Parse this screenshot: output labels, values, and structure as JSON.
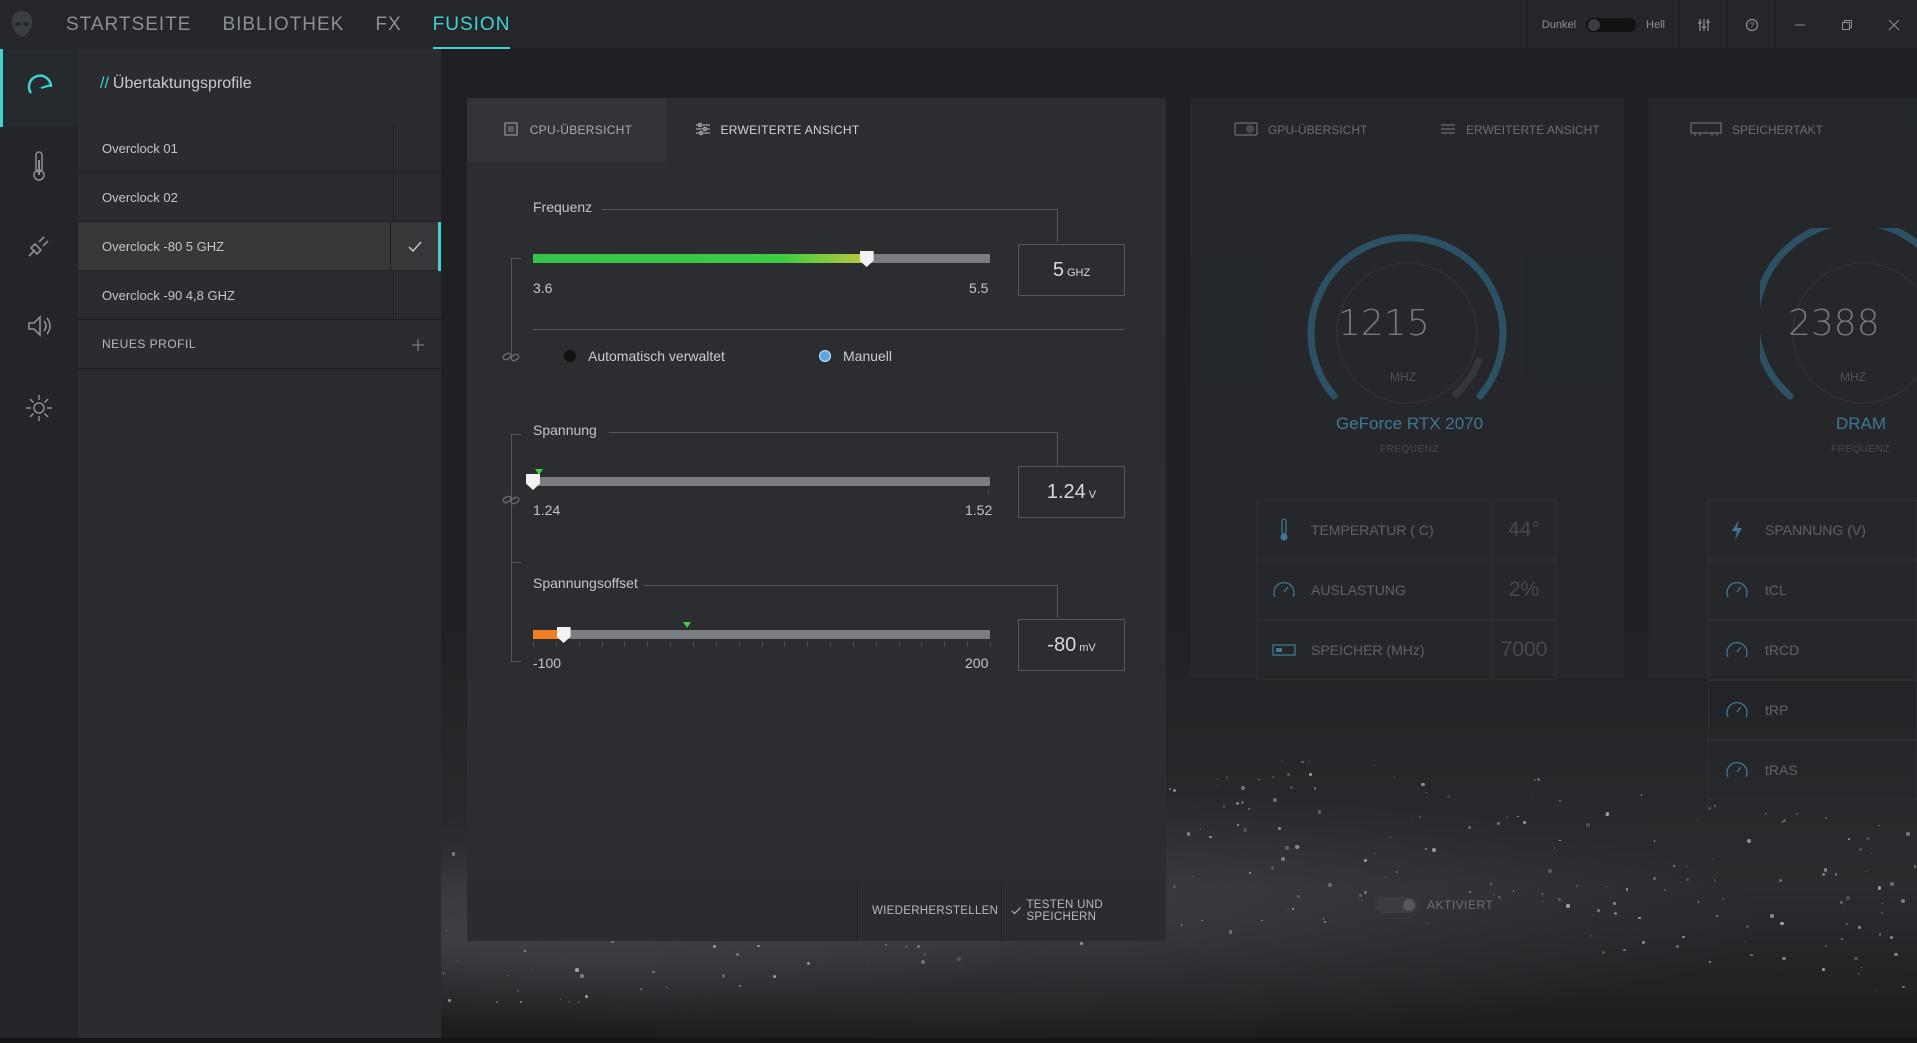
{
  "window": {
    "theme_dark": "Dunkel",
    "theme_light": "Hell"
  },
  "nav": {
    "items": [
      "STARTSEITE",
      "BIBLIOTHEK",
      "FX",
      "FUSION"
    ],
    "active": "FUSION"
  },
  "profiles": {
    "title_prefix": "//",
    "title": "Übertaktungsprofile",
    "items": [
      {
        "label": "Overclock 01"
      },
      {
        "label": "Overclock 02"
      },
      {
        "label": "Overclock -80 5 GHZ",
        "selected": true
      },
      {
        "label": "Overclock -90 4,8 GHZ"
      }
    ],
    "new_profile": "NEUES PROFIL"
  },
  "cpu": {
    "tab_overview": "CPU-ÜBERSICHT",
    "tab_advanced": "ERWEITERTE ANSICHT",
    "frequency": {
      "label": "Frequenz",
      "min": "3.6",
      "max": "5.5",
      "value": "5",
      "unit": "GHZ",
      "fraction": 0.73
    },
    "mode": {
      "auto": "Automatisch verwaltet",
      "manual": "Manuell",
      "selected": "Manuell"
    },
    "voltage": {
      "label": "Spannung",
      "min": "1.24",
      "max": "1.52",
      "value": "1.24",
      "unit": "V",
      "fraction": 0.0
    },
    "offset": {
      "label": "Spannungsoffset",
      "min": "-100",
      "max": "200",
      "value": "-80",
      "unit": "mV",
      "fraction": 0.067
    },
    "btn_restore": "WIEDERHERSTELLEN",
    "btn_test_save": "TESTEN UND SPEICHERN"
  },
  "gpu": {
    "tab_overview": "GPU-ÜBERSICHT",
    "tab_advanced": "ERWEITERTE ANSICHT",
    "gauge_value": "1215",
    "gauge_unit": "MHZ",
    "name": "GeForce RTX 2070",
    "sub": "FREQUENZ",
    "stats": [
      {
        "label": "TEMPERATUR ( C)",
        "value": "44°"
      },
      {
        "label": "AUSLASTUNG",
        "value": "2%"
      },
      {
        "label": "SPEICHER (MHz)",
        "value": "7000"
      }
    ],
    "activated": "AKTIVIERT"
  },
  "ram": {
    "tab": "SPEICHERTAKT",
    "gauge_value": "2388",
    "gauge_unit": "MHZ",
    "name": "DRAM",
    "sub": "FREQUENZ",
    "stats": [
      {
        "label": "SPANNUNG (V)"
      },
      {
        "label": "tCL"
      },
      {
        "label": "tRCD"
      },
      {
        "label": "tRP"
      },
      {
        "label": "tRAS"
      }
    ]
  },
  "colors": {
    "accent": "#3fd3d3",
    "gauge_blue": "#4a90b4",
    "slider_green": "#3fcc44",
    "slider_orange": "#ef7f22",
    "radio_selected": "#5aa8e0"
  }
}
